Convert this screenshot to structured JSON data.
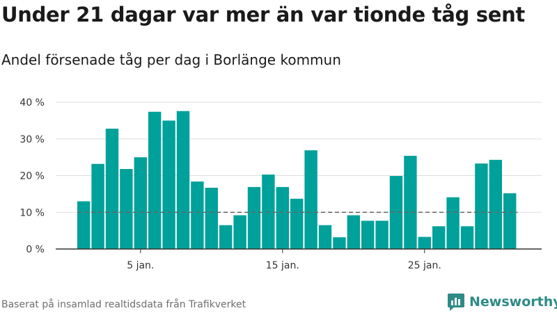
{
  "title": "Under 21 dagar var mer än var tionde tåg sent",
  "subtitle": "Andel försenade tåg per dag i Borlänge kommun",
  "source": "Baserat på insamlad realtidsdata från Trafikverket",
  "brand": {
    "name": "Newsworthy",
    "icon": "newsworthy-logo-icon",
    "color": "#2e8b86"
  },
  "colors": {
    "bar": "#00a19a",
    "grid": "#dddddd",
    "reference": "#666666",
    "axis": "#333333"
  },
  "chart_data": {
    "type": "bar",
    "title": "",
    "xlabel": "",
    "ylabel": "",
    "ylim": [
      0,
      40
    ],
    "y_ticks": [
      0,
      10,
      20,
      30,
      40
    ],
    "y_tick_labels": [
      "0 %",
      "10 %",
      "20 %",
      "30 %",
      "40 %"
    ],
    "x_ticks": [
      5,
      15,
      25
    ],
    "x_tick_labels": [
      "5 jan.",
      "15 jan.",
      "25 jan."
    ],
    "x": [
      1,
      2,
      3,
      4,
      5,
      6,
      7,
      8,
      9,
      10,
      11,
      12,
      13,
      14,
      15,
      16,
      17,
      18,
      19,
      20,
      21,
      22,
      23,
      24,
      25,
      26,
      27,
      28,
      29,
      30,
      31
    ],
    "values": [
      13.0,
      23.2,
      32.8,
      21.8,
      25.0,
      37.4,
      35.0,
      37.6,
      18.4,
      16.7,
      6.5,
      9.2,
      16.9,
      20.3,
      16.9,
      13.7,
      26.9,
      6.5,
      3.2,
      9.2,
      7.7,
      7.7,
      19.9,
      25.4,
      3.3,
      6.2,
      14.1,
      6.2,
      23.3,
      24.3,
      15.2
    ],
    "reference_line": 10,
    "grid": true
  }
}
